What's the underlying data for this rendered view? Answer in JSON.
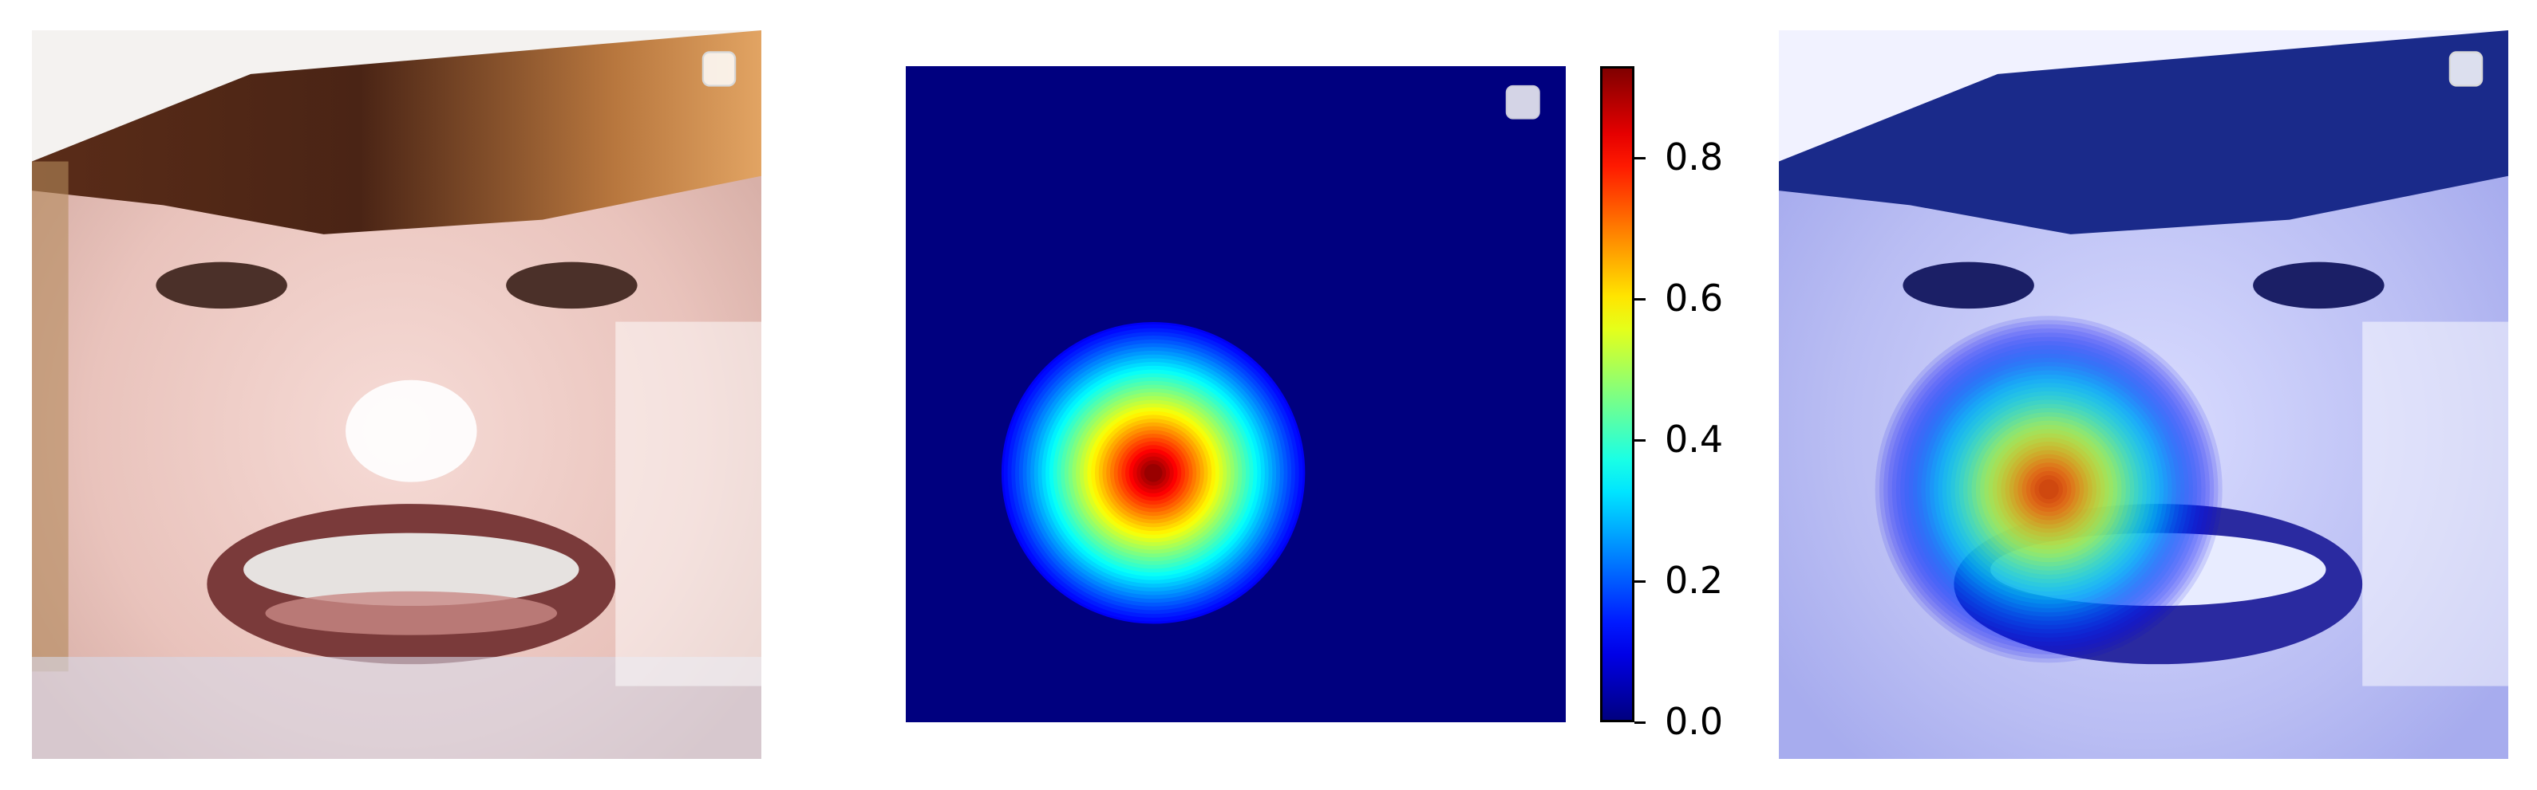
{
  "chart_data": [
    {
      "type": "image",
      "panel": "face",
      "legend": "top-right",
      "axes_visible": false
    },
    {
      "type": "heatmap",
      "panel": "attention-map",
      "colormap": "jet",
      "colorbar": {
        "vmin": 0.0,
        "vmax": 0.93,
        "ticks": [
          0.0,
          0.2,
          0.4,
          0.6,
          0.8
        ],
        "tick_labels": [
          "0.0",
          "0.2",
          "0.4",
          "0.6",
          "0.8"
        ]
      },
      "peak": {
        "x": 0.375,
        "y": 0.62,
        "value": 0.93
      },
      "background_value": 0.0,
      "legend": "top-right",
      "axes_visible": false
    },
    {
      "type": "image",
      "panel": "overlay",
      "legend": "top-right",
      "axes_visible": false
    }
  ],
  "colors": {
    "jet_low": "#00007f",
    "jet_high": "#7f0000",
    "overlay_tint": "#8080ff"
  }
}
